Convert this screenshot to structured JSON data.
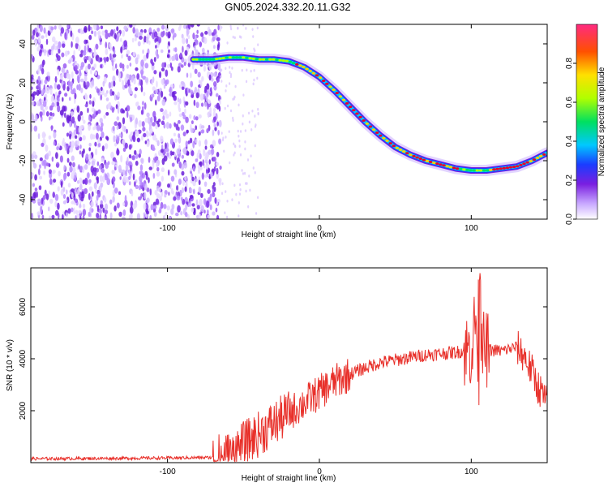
{
  "page_title": "GN05.2024.332.20.11.G32",
  "chart_data": [
    {
      "type": "heatmap",
      "panel": "spectrogram",
      "xlabel": "Height of straight line (km)",
      "ylabel": "Frequency (Hz)",
      "xlim": [
        -190,
        150
      ],
      "ylim": [
        -50,
        50
      ],
      "xticks": [
        -100,
        0,
        100
      ],
      "yticks": [
        40,
        20,
        0,
        -20,
        -40
      ],
      "x_tick_labels": [
        "-100",
        "0",
        "100"
      ],
      "y_tick_labels": [
        "40",
        "20",
        "0",
        "-20",
        "-40"
      ],
      "colorbar": {
        "label": "Normalized spectral amplitude",
        "range": [
          0,
          1
        ],
        "ticks": [
          "0.0",
          "0.2",
          "0.4",
          "0.6",
          "0.8"
        ],
        "colors": [
          "#ffffff",
          "#c8a8ff",
          "#7a1fe0",
          "#1a3cff",
          "#00c8ff",
          "#00e060",
          "#b0ff00",
          "#ffe000",
          "#ff5000",
          "#e00030"
        ]
      },
      "noise_region": {
        "x": [
          -190,
          -65
        ],
        "y": [
          -50,
          50
        ]
      },
      "main_track": {
        "x": [
          -83,
          -70,
          -60,
          -50,
          -40,
          -30,
          -20,
          -10,
          0,
          10,
          20,
          30,
          40,
          50,
          60,
          70,
          80,
          90,
          100,
          110,
          120,
          130,
          140,
          150
        ],
        "y": [
          32,
          32,
          33,
          33,
          32,
          32,
          31,
          28,
          23,
          16,
          8,
          0,
          -7,
          -13,
          -17,
          -20,
          -22,
          -24,
          -25,
          -25,
          -24,
          -23,
          -20,
          -16
        ]
      },
      "grid": false,
      "legend": "none"
    },
    {
      "type": "line",
      "panel": "snr",
      "xlabel": "Height of straight line (km)",
      "ylabel": "SNR (10 * v/v)",
      "xlim": [
        -190,
        150
      ],
      "ylim": [
        0,
        7500
      ],
      "xticks": [
        -100,
        0,
        100
      ],
      "yticks": [
        2000,
        4000,
        6000
      ],
      "x_tick_labels": [
        "-100",
        "0",
        "100"
      ],
      "y_tick_labels": [
        "2000",
        "4000",
        "6000"
      ],
      "color": "#e8302a",
      "series": [
        {
          "x": [
            -190,
            -150,
            -100,
            -70,
            -60,
            -50,
            -40,
            -30,
            -20,
            -10,
            0,
            10,
            20,
            30,
            40,
            50,
            60,
            70,
            80,
            90,
            95,
            100,
            103,
            105,
            107,
            110,
            120,
            130,
            135,
            140,
            145,
            150
          ],
          "values": [
            150,
            160,
            180,
            200,
            300,
            700,
            1100,
            1500,
            1900,
            2300,
            2700,
            3100,
            3400,
            3650,
            3850,
            3950,
            4050,
            4150,
            4200,
            4250,
            4300,
            4350,
            5600,
            3200,
            4400,
            4350,
            4300,
            4450,
            4100,
            3500,
            2800,
            2300
          ]
        }
      ],
      "grid": false,
      "legend": "none"
    }
  ]
}
